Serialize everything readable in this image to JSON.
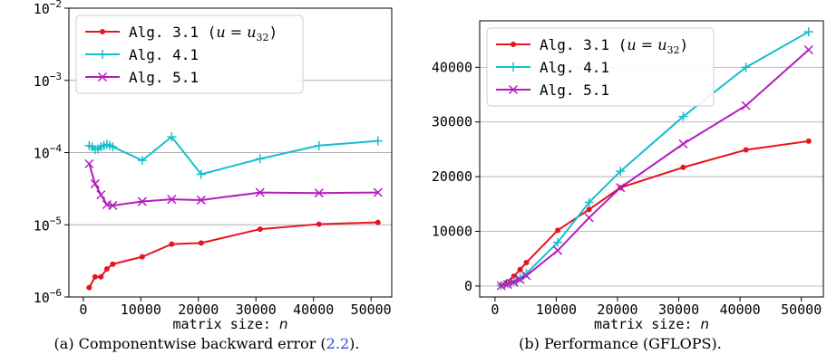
{
  "captions": [
    {
      "prefix": "(a) Componentwise backward error (",
      "ref": "2.2",
      "suffix": ")."
    },
    {
      "prefix": "(b) Performance (GFLOPS).",
      "ref": "",
      "suffix": ""
    }
  ],
  "colors": {
    "alg31": "#e8141e",
    "alg41": "#17becf",
    "alg51": "#b41cc0",
    "grid": "#b0b0b0"
  },
  "chart_data": [
    {
      "type": "line",
      "title": "",
      "xlabel": "matrix size: n",
      "ylabel": "",
      "yscale": "log",
      "xlim": [
        -2500,
        53600
      ],
      "ylim": [
        1e-06,
        0.01
      ],
      "xticks": [
        0,
        10000,
        20000,
        30000,
        40000,
        50000
      ],
      "xtick_labels": [
        "0",
        "10000",
        "20000",
        "30000",
        "40000",
        "50000"
      ],
      "yticks": [
        1e-06,
        1e-05,
        0.0001,
        0.001,
        0.01
      ],
      "ytick_labels": [
        [
          "10",
          "−6"
        ],
        [
          "10",
          "−5"
        ],
        [
          "10",
          "−4"
        ],
        [
          "10",
          "−3"
        ],
        [
          "10",
          "−2"
        ]
      ],
      "grid": "y",
      "legend": "top-left",
      "series": [
        {
          "name": "Alg. 3.1 (u = u32)",
          "legend_label": "Alg. 3.1 (",
          "legend_math": "u = u",
          "legend_sub": "32",
          "marker": "dot",
          "color": "#e8141e",
          "x": [
            1024,
            2048,
            3072,
            4096,
            5120,
            10240,
            15360,
            20480,
            30720,
            40960,
            51200
          ],
          "y": [
            1.35e-06,
            1.9e-06,
            1.9e-06,
            2.45e-06,
            2.85e-06,
            3.6e-06,
            5.4e-06,
            5.6e-06,
            8.7e-06,
            1.02e-05,
            1.08e-05
          ]
        },
        {
          "name": "Alg. 4.1",
          "legend_label": "Alg. 4.1",
          "marker": "plus",
          "color": "#17becf",
          "x": [
            1024,
            1536,
            2048,
            2560,
            3072,
            3584,
            4096,
            4608,
            5120,
            10240,
            15360,
            20480,
            30720,
            40960,
            51200
          ],
          "y": [
            0.000125,
            0.00012,
            0.00011,
            0.000112,
            0.00012,
            0.000125,
            0.00013,
            0.000125,
            0.00012,
            7.8e-05,
            0.000165,
            5e-05,
            8.2e-05,
            0.000125,
            0.000145
          ]
        },
        {
          "name": "Alg. 5.1",
          "legend_label": "Alg. 5.1",
          "marker": "x",
          "color": "#b41cc0",
          "x": [
            1024,
            2048,
            3072,
            4096,
            5120,
            10240,
            15360,
            20480,
            30720,
            40960,
            51200
          ],
          "y": [
            7e-05,
            3.7e-05,
            2.6e-05,
            1.9e-05,
            1.85e-05,
            2.1e-05,
            2.25e-05,
            2.2e-05,
            2.8e-05,
            2.75e-05,
            2.8e-05
          ]
        }
      ]
    },
    {
      "type": "line",
      "title": "",
      "xlabel": "matrix size: n",
      "ylabel": "",
      "yscale": "linear",
      "xlim": [
        -2500,
        53600
      ],
      "ylim": [
        -2000,
        48500
      ],
      "xticks": [
        0,
        10000,
        20000,
        30000,
        40000,
        50000
      ],
      "xtick_labels": [
        "0",
        "10000",
        "20000",
        "30000",
        "40000",
        "50000"
      ],
      "yticks": [
        0,
        10000,
        20000,
        30000,
        40000
      ],
      "ytick_labels": [
        "0",
        "10000",
        "20000",
        "30000",
        "40000"
      ],
      "grid": "y",
      "legend": "top-left",
      "series": [
        {
          "name": "Alg. 3.1 (u = u32)",
          "legend_label": "Alg. 3.1 (",
          "legend_math": "u = u",
          "legend_sub": "32",
          "marker": "dot",
          "color": "#e8141e",
          "x": [
            1024,
            2048,
            3072,
            4096,
            5120,
            10240,
            15360,
            20480,
            30720,
            40960,
            51200
          ],
          "y": [
            200,
            800,
            1800,
            3000,
            4300,
            10200,
            14000,
            18000,
            21700,
            24900,
            26500
          ]
        },
        {
          "name": "Alg. 4.1",
          "legend_label": "Alg. 4.1",
          "marker": "plus",
          "color": "#17becf",
          "x": [
            1024,
            2048,
            3072,
            4096,
            5120,
            10240,
            15360,
            20480,
            30720,
            40960,
            51200
          ],
          "y": [
            100,
            400,
            900,
            1500,
            2300,
            8000,
            15300,
            21000,
            31000,
            40000,
            46500
          ]
        },
        {
          "name": "Alg. 5.1",
          "legend_label": "Alg. 5.1",
          "marker": "x",
          "color": "#b41cc0",
          "x": [
            1024,
            2048,
            3072,
            4096,
            5120,
            10240,
            15360,
            20480,
            30720,
            40960,
            51200
          ],
          "y": [
            50,
            300,
            700,
            1200,
            1900,
            6500,
            12500,
            18000,
            26000,
            33000,
            43200
          ]
        }
      ]
    }
  ]
}
